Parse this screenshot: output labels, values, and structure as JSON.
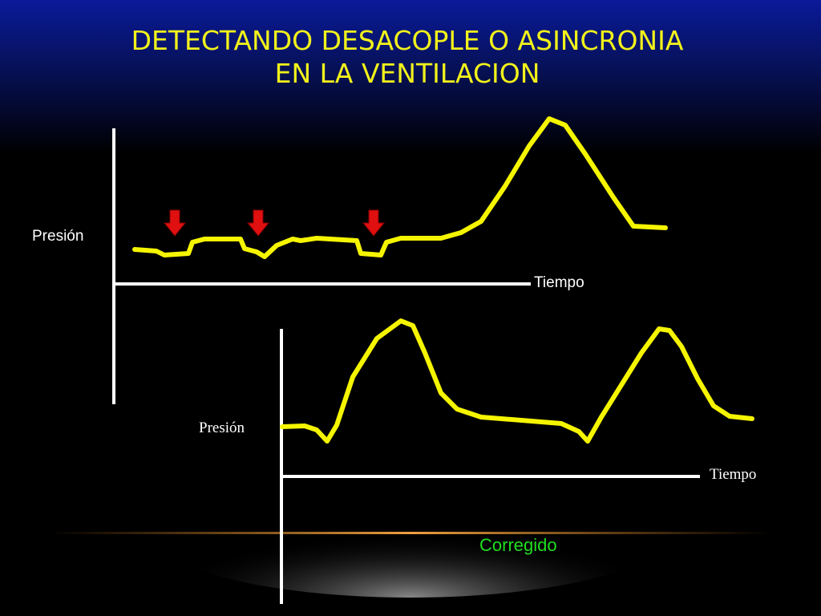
{
  "title": {
    "lines": [
      "DETECTANDO DESACOPLE O ASINCRONIA",
      "EN LA VENTILACION"
    ]
  },
  "top_graph": {
    "y_label": "Presión",
    "x_label": "Tiempo"
  },
  "bottom_graph": {
    "y_label": "Presión",
    "x_label": "Tiempo",
    "caption": "Corregido"
  }
}
